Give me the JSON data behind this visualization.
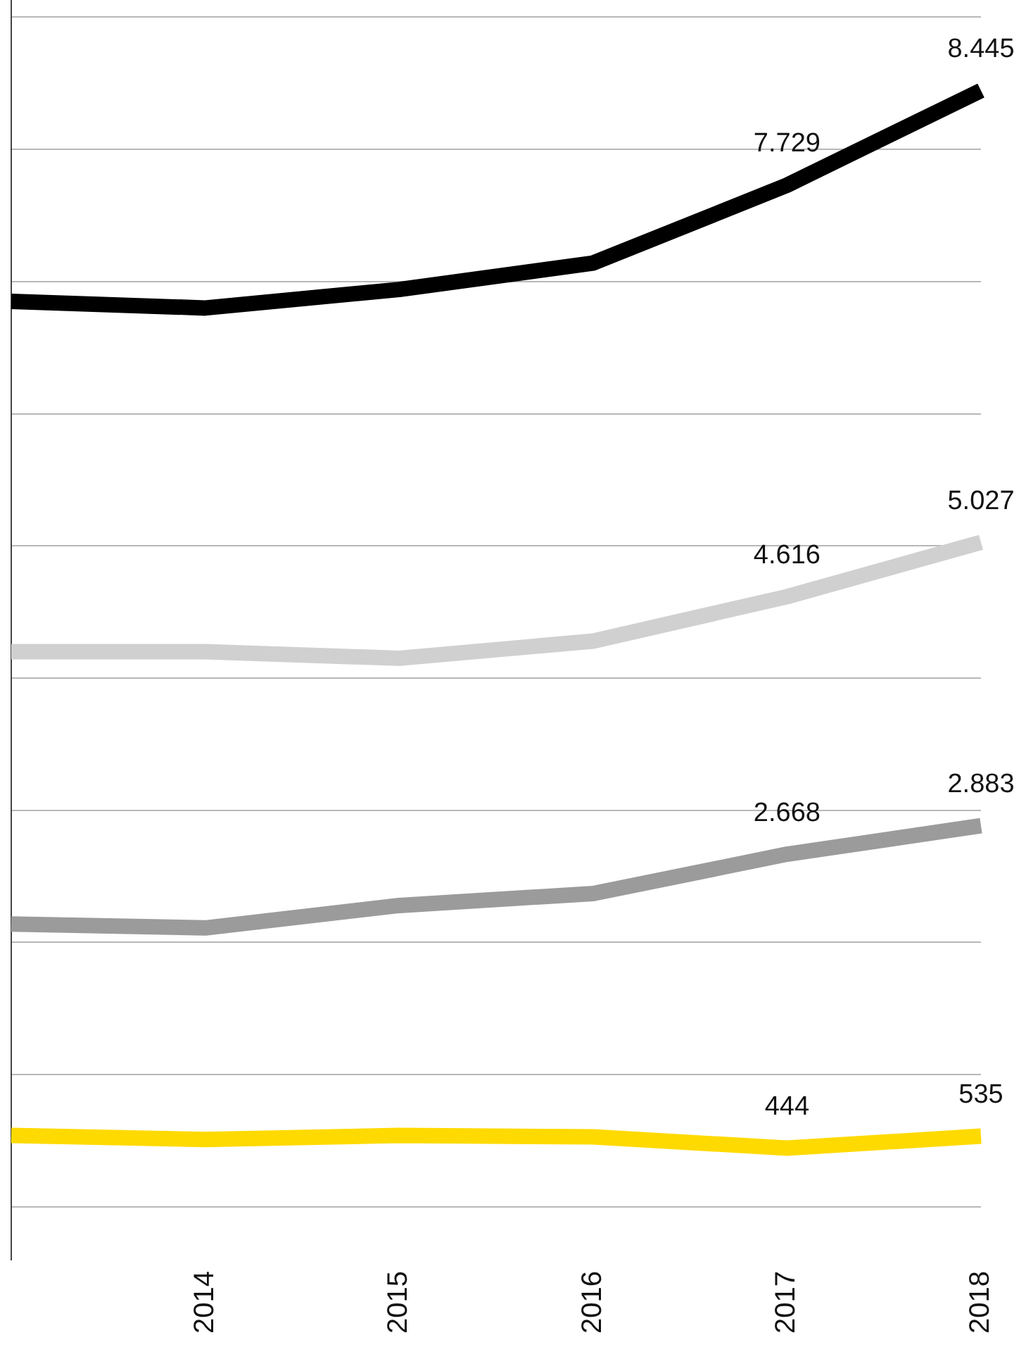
{
  "chart_data": {
    "type": "line",
    "categories": [
      null,
      "2014",
      "2015",
      "2016",
      "2017",
      "2018"
    ],
    "series": [
      {
        "color": "#000000",
        "values": [
          6850,
          6800,
          6940,
          7140,
          7729,
          8445
        ],
        "value_labels": [
          null,
          null,
          null,
          null,
          "7.729",
          "8.445"
        ]
      },
      {
        "color": "#d0d0d0",
        "values": [
          4200,
          4200,
          4150,
          4280,
          4616,
          5027
        ],
        "value_labels": [
          null,
          null,
          null,
          null,
          "4.616",
          "5.027"
        ]
      },
      {
        "color": "#9b9b9b",
        "values": [
          2140,
          2110,
          2280,
          2370,
          2668,
          2883
        ],
        "value_labels": [
          null,
          null,
          null,
          null,
          "2.668",
          "2.883"
        ]
      },
      {
        "color": "#ffda00",
        "values": [
          540,
          510,
          540,
          530,
          444,
          535
        ],
        "value_labels": [
          null,
          null,
          null,
          null,
          "444",
          "535"
        ]
      }
    ],
    "ylim": [
      -400,
      9130
    ],
    "yticks": [
      {
        "value": 0,
        "label": null
      },
      {
        "value": 1000,
        "label": null
      },
      {
        "value": 2000,
        "label": null
      },
      {
        "value": 3000,
        "label": null
      },
      {
        "value": 4000,
        "label": null
      },
      {
        "value": 5000,
        "label": null
      },
      {
        "value": 6000,
        "label": null
      },
      {
        "value": 7000,
        "label": null
      },
      {
        "value": 8000,
        "label": null
      },
      {
        "value": 9000,
        "label": null
      }
    ],
    "grid": "y",
    "legend": false,
    "tick_labels": "x",
    "marker": "none"
  }
}
